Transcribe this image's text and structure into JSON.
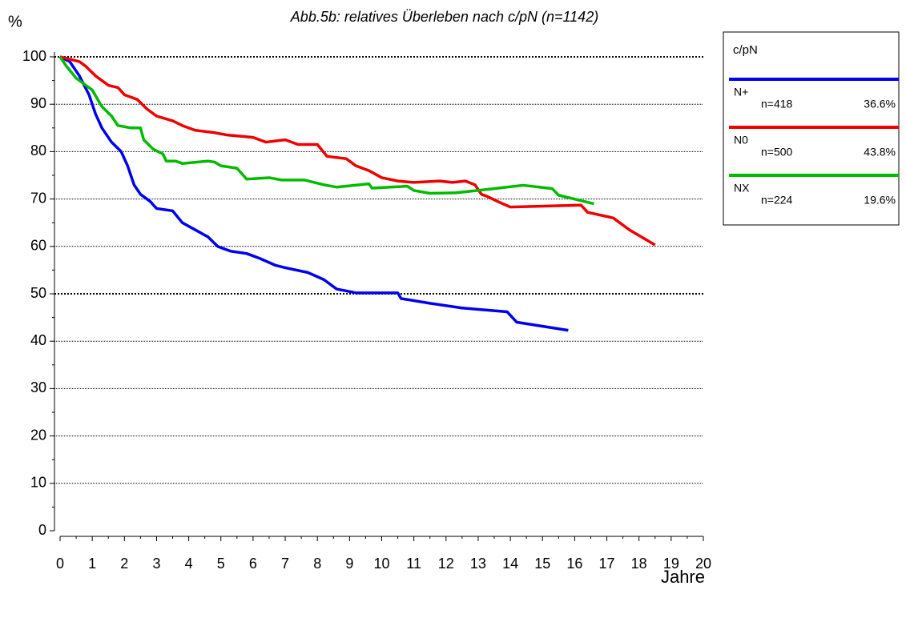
{
  "chart_data": {
    "type": "line",
    "title": "Abb.5b: relatives Überleben nach c/pN (n=1142)",
    "ylabel": "%",
    "xlabel": "Jahre",
    "legend_title": "c/pN",
    "legend": "right",
    "xlim": [
      0,
      20
    ],
    "xticks": [
      0,
      1,
      2,
      3,
      4,
      5,
      6,
      7,
      8,
      9,
      10,
      11,
      12,
      13,
      14,
      15,
      16,
      17,
      18,
      19,
      20
    ],
    "ylim": [
      0,
      100
    ],
    "yticks": [
      0,
      10,
      20,
      30,
      40,
      50,
      60,
      70,
      80,
      90,
      100
    ],
    "grid": true,
    "grid_emphasis": [
      50,
      100
    ],
    "series": [
      {
        "name": "N+",
        "n_label": "n=418",
        "percent_label": "36.6%",
        "color": "#0000ee",
        "x": [
          0,
          0.3,
          0.6,
          0.9,
          1.1,
          1.3,
          1.6,
          1.9,
          2.1,
          2.3,
          2.5,
          2.8,
          3.0,
          3.5,
          3.8,
          4.2,
          4.6,
          4.9,
          5.3,
          5.8,
          6.2,
          6.7,
          7.0,
          7.7,
          8.2,
          8.6,
          9.2,
          10.5,
          10.6,
          11.5,
          12.5,
          13.9,
          14.2,
          15.8
        ],
        "values": [
          100,
          99,
          96,
          92,
          88,
          85,
          82,
          80,
          77,
          73,
          71,
          69.5,
          68,
          67.5,
          65,
          63.5,
          62,
          60,
          59,
          58.5,
          57.5,
          56,
          55.5,
          54.5,
          53,
          51,
          50.2,
          50.2,
          49,
          48,
          47,
          46.2,
          44,
          42.3
        ]
      },
      {
        "name": "N0",
        "n_label": "n=500",
        "percent_label": "43.8%",
        "color": "#ee0000",
        "x": [
          0,
          0.6,
          0.8,
          1.1,
          1.5,
          1.8,
          2.0,
          2.4,
          2.7,
          3.0,
          3.5,
          3.8,
          4.2,
          4.8,
          5.2,
          6.0,
          6.4,
          7.0,
          7.4,
          8.0,
          8.3,
          8.9,
          9.2,
          9.6,
          10.0,
          10.5,
          11.0,
          11.8,
          12.2,
          12.6,
          12.9,
          13.1,
          13.3,
          13.6,
          14.0,
          16.2,
          16.4,
          17.2,
          17.7,
          18.5
        ],
        "values": [
          100,
          99,
          98,
          96,
          94,
          93.5,
          92,
          91,
          89,
          87.5,
          86.5,
          85.5,
          84.5,
          84,
          83.5,
          83,
          82,
          82.5,
          81.5,
          81.5,
          79,
          78.5,
          77,
          76,
          74.5,
          73.8,
          73.5,
          73.8,
          73.5,
          73.8,
          73,
          71,
          70.5,
          69.5,
          68.3,
          68.7,
          67.2,
          66,
          63.5,
          60.3
        ]
      },
      {
        "name": "NX",
        "n_label": "n=224",
        "percent_label": "19.6%",
        "color": "#00bb00",
        "x": [
          0,
          0.2,
          0.5,
          0.8,
          1.0,
          1.3,
          1.6,
          1.8,
          2.2,
          2.5,
          2.6,
          2.9,
          3.2,
          3.3,
          3.6,
          3.8,
          4.6,
          4.8,
          5.0,
          5.5,
          5.8,
          6.5,
          6.9,
          7.6,
          8.2,
          8.6,
          9.6,
          9.7,
          10.8,
          11.0,
          11.5,
          12.3,
          13.5,
          14.4,
          15.3,
          15.5,
          16.6
        ],
        "values": [
          100,
          98,
          95.5,
          94,
          93,
          89.5,
          87.5,
          85.5,
          85,
          85,
          82.5,
          80.5,
          79.5,
          78,
          78,
          77.5,
          78,
          77.8,
          77,
          76.5,
          74.2,
          74.5,
          74,
          74,
          73,
          72.5,
          73.2,
          72.3,
          72.7,
          71.8,
          71.2,
          71.3,
          72.2,
          72.9,
          72.2,
          70.8,
          69
        ]
      }
    ]
  }
}
